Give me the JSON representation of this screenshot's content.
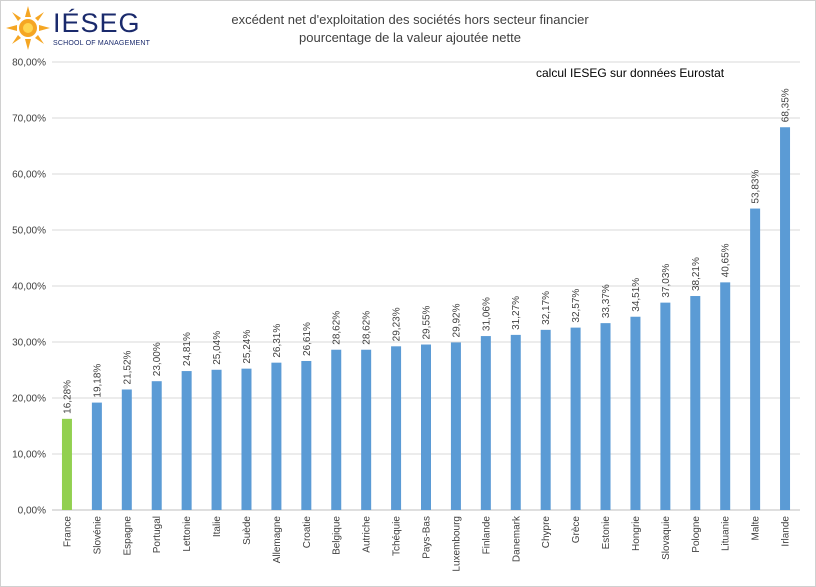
{
  "logo": {
    "name": "IÉSEG",
    "subtitle": "SCHOOL OF MANAGEMENT"
  },
  "colors": {
    "bar": "#5b9bd5",
    "highlight": "#92d050",
    "grid": "#d9d9d9"
  },
  "chart_data": {
    "type": "bar",
    "title": "excédent net d'exploitation des sociétés hors secteur financier",
    "subtitle": "pourcentage de la valeur ajoutée nette",
    "annotation": "calcul IESEG sur données Eurostat",
    "ylim": [
      0,
      80
    ],
    "yticks": [
      0,
      10,
      20,
      30,
      40,
      50,
      60,
      70,
      80
    ],
    "ytick_labels": [
      "0,00%",
      "10,00%",
      "20,00%",
      "30,00%",
      "40,00%",
      "50,00%",
      "60,00%",
      "70,00%",
      "80,00%"
    ],
    "categories": [
      "France",
      "Slovénie",
      "Espagne",
      "Portugal",
      "Lettonie",
      "Italie",
      "Suède",
      "Allemagne",
      "Croatie",
      "Belgique",
      "Autriche",
      "Tchéquie",
      "Pays-Bas",
      "Luxembourg",
      "Finlande",
      "Danemark",
      "Chypre",
      "Grèce",
      "Estonie",
      "Hongrie",
      "Slovaquie",
      "Pologne",
      "Lituanie",
      "Malte",
      "Irlande"
    ],
    "values": [
      16.28,
      19.18,
      21.52,
      23.0,
      24.81,
      25.04,
      25.24,
      26.31,
      26.61,
      28.62,
      28.62,
      29.23,
      29.55,
      29.92,
      31.06,
      31.27,
      32.17,
      32.57,
      33.37,
      34.51,
      37.03,
      38.21,
      40.65,
      53.83,
      68.35
    ],
    "data_labels": [
      "16,28%",
      "19,18%",
      "21,52%",
      "23,00%",
      "24,81%",
      "25,04%",
      "25,24%",
      "26,31%",
      "26,61%",
      "28,62%",
      "28,62%",
      "29,23%",
      "29,55%",
      "29,92%",
      "31,06%",
      "31,27%",
      "32,17%",
      "32,57%",
      "33,37%",
      "34,51%",
      "37,03%",
      "38,21%",
      "40,65%",
      "53,83%",
      "68,35%"
    ],
    "highlight_index": 0,
    "grid": true
  }
}
